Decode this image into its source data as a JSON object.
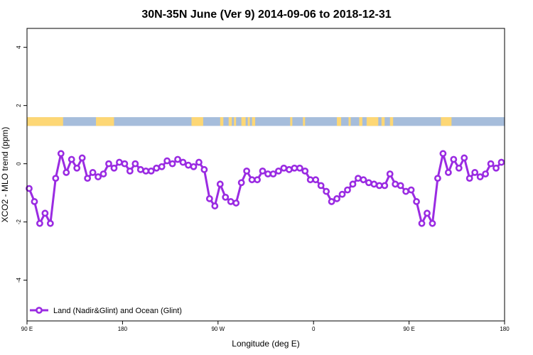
{
  "chart_data": {
    "type": "line",
    "title": "30N-35N June (Ver 9)   2014-09-06 to 2018-12-31",
    "xlabel": "Longitude (deg E)",
    "ylabel": "XCO2 - MLO trend (ppm)",
    "xlim": [
      90,
      540
    ],
    "ylim": [
      -5.4,
      4.65
    ],
    "x_ticks": [
      {
        "value": 90,
        "label": "90 E"
      },
      {
        "value": 180,
        "label": "180"
      },
      {
        "value": 270,
        "label": "90 W"
      },
      {
        "value": 360,
        "label": "0"
      },
      {
        "value": 450,
        "label": "90 E"
      },
      {
        "value": 540,
        "label": "180"
      }
    ],
    "y_ticks": [
      {
        "value": 4,
        "label": "4"
      },
      {
        "value": 2,
        "label": "2"
      },
      {
        "value": 0,
        "label": "0"
      },
      {
        "value": -2,
        "label": "-2"
      },
      {
        "value": -4,
        "label": "-4"
      }
    ],
    "grid": false,
    "legend_position": "bottom-left",
    "land_ocean_strip": {
      "y_range": [
        1.3,
        1.6
      ],
      "ocean_color": "#a6bddb",
      "land_color": "#fdd775",
      "land_segments": [
        [
          90,
          124
        ],
        [
          155,
          172
        ],
        [
          245,
          256
        ],
        [
          272,
          275
        ],
        [
          280,
          283
        ],
        [
          285,
          287
        ],
        [
          292,
          296
        ],
        [
          298,
          300
        ],
        [
          302,
          305
        ],
        [
          338,
          340
        ],
        [
          350,
          352
        ],
        [
          382,
          386
        ],
        [
          393,
          395
        ],
        [
          403,
          406
        ],
        [
          410,
          421
        ],
        [
          424,
          427
        ],
        [
          432,
          435
        ],
        [
          480,
          490
        ]
      ]
    },
    "series": [
      {
        "name": "Land (Nadir&Glint) and Ocean (Glint)",
        "color": "#9a2be2",
        "x": [
          92,
          97,
          102,
          107,
          112,
          117,
          122,
          127,
          132,
          137,
          142,
          147,
          152,
          157,
          162,
          167,
          172,
          177,
          182,
          187,
          192,
          197,
          202,
          207,
          212,
          217,
          222,
          227,
          232,
          237,
          242,
          247,
          252,
          257,
          262,
          267,
          272,
          277,
          282,
          287,
          292,
          297,
          302,
          307,
          312,
          317,
          322,
          327,
          332,
          337,
          342,
          347,
          352,
          357,
          362,
          367,
          372,
          377,
          382,
          387,
          392,
          397,
          402,
          407,
          412,
          417,
          422,
          427,
          432,
          437,
          442,
          447,
          452,
          457,
          462,
          467,
          472,
          477,
          482,
          487,
          492,
          497,
          502,
          507,
          512,
          517,
          522,
          527,
          532,
          537
        ],
        "y": [
          -0.85,
          -1.3,
          -2.05,
          -1.7,
          -2.05,
          -0.5,
          0.35,
          -0.3,
          0.15,
          -0.15,
          0.2,
          -0.5,
          -0.3,
          -0.45,
          -0.35,
          0.0,
          -0.15,
          0.05,
          0.0,
          -0.25,
          0.0,
          -0.2,
          -0.25,
          -0.25,
          -0.15,
          -0.1,
          0.1,
          0.0,
          0.15,
          0.05,
          -0.05,
          -0.1,
          0.05,
          -0.2,
          -1.2,
          -1.45,
          -0.7,
          -1.15,
          -1.3,
          -1.35,
          -0.65,
          -0.25,
          -0.55,
          -0.55,
          -0.25,
          -0.35,
          -0.35,
          -0.25,
          -0.15,
          -0.2,
          -0.15,
          -0.15,
          -0.25,
          -0.55,
          -0.55,
          -0.75,
          -0.95,
          -1.3,
          -1.2,
          -1.05,
          -0.9,
          -0.7,
          -0.5,
          -0.55,
          -0.65,
          -0.7,
          -0.75,
          -0.75,
          -0.35,
          -0.7,
          -0.75,
          -0.95,
          -0.9,
          -1.3,
          -2.05,
          -1.7,
          -2.05,
          -0.5,
          0.35,
          -0.3,
          0.15,
          -0.15,
          0.2,
          -0.5,
          -0.3,
          -0.45,
          -0.35,
          0.0,
          -0.15,
          0.05
        ]
      }
    ]
  }
}
